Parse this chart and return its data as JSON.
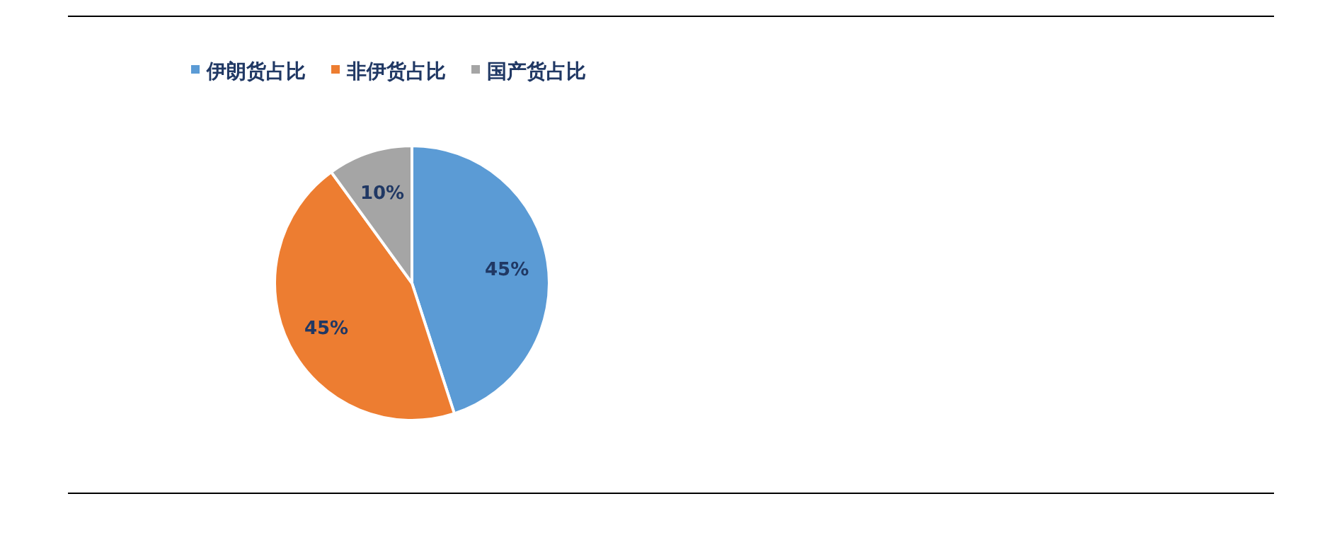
{
  "chart_data": {
    "type": "pie",
    "categories": [
      "伊朗货占比",
      "非伊货占比",
      "国产货占比"
    ],
    "values": [
      45,
      45,
      10
    ],
    "colors": [
      "#5b9bd5",
      "#ed7d31",
      "#a5a5a5"
    ],
    "value_labels": [
      "45%",
      "45%",
      "10%"
    ],
    "legend": "top"
  }
}
